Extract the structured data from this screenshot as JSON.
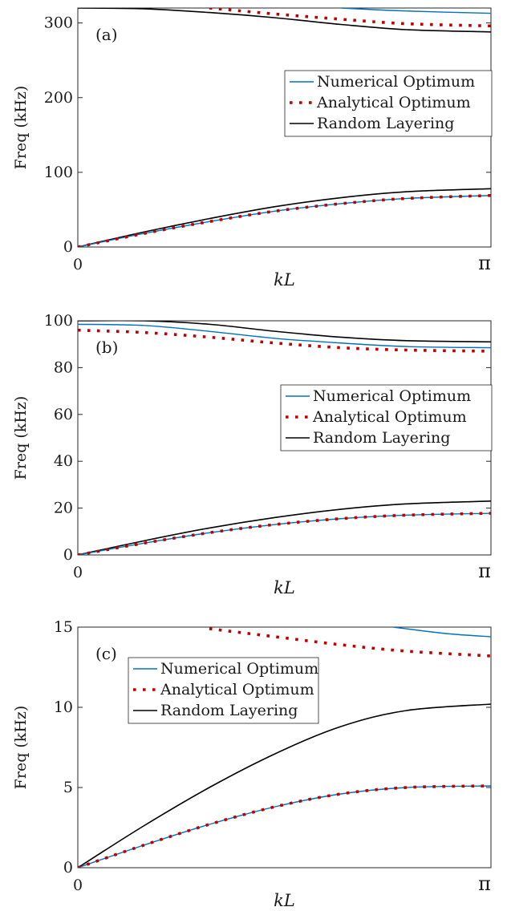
{
  "colors": {
    "numerical": "#0072bd",
    "analytical": "#c00000",
    "random": "#000000"
  },
  "x_ticks": [
    "0",
    "π"
  ],
  "x_label": "kL",
  "chart_data": [
    {
      "type": "line",
      "panel_label": "(a)",
      "ylabel": "Freq (kHz)",
      "xlabel": "kL",
      "xlim": [
        0,
        3.1416
      ],
      "ylim": [
        0,
        320
      ],
      "yticks": [
        0,
        100,
        200,
        300
      ],
      "ytick_labels": [
        "0",
        "100",
        "200",
        "300"
      ],
      "legend_position": "center-right",
      "series": [
        {
          "name": "Numerical Optimum",
          "style": "solid",
          "color": "numerical",
          "branches": [
            {
              "x": [
                0,
                0.5,
                1.0,
                1.5,
                2.0,
                2.5,
                3.1416
              ],
              "y": [
                0,
                18,
                34,
                48,
                58,
                65,
                69
              ]
            },
            {
              "x": [
                2.0,
                2.5,
                3.1416
              ],
              "y": [
                320,
                316,
                313
              ]
            }
          ]
        },
        {
          "name": "Analytical Optimum",
          "style": "dotted",
          "color": "analytical",
          "branches": [
            {
              "x": [
                0,
                0.5,
                1.0,
                1.5,
                2.0,
                2.5,
                3.1416
              ],
              "y": [
                0,
                18,
                34,
                48,
                58,
                65,
                69
              ]
            },
            {
              "x": [
                1.0,
                1.5,
                2.0,
                2.5,
                3.1416
              ],
              "y": [
                320,
                312,
                305,
                299,
                296
              ]
            }
          ]
        },
        {
          "name": "Random Layering",
          "style": "solid",
          "color": "random",
          "branches": [
            {
              "x": [
                0,
                0.5,
                1.0,
                1.5,
                2.0,
                2.5,
                3.1416
              ],
              "y": [
                0,
                20,
                38,
                54,
                66,
                74,
                78
              ]
            },
            {
              "x": [
                0,
                0.5,
                1.0,
                1.5,
                2.0,
                2.5,
                3.1416
              ],
              "y": [
                320,
                319,
                314,
                307,
                298,
                291,
                288
              ]
            }
          ]
        }
      ]
    },
    {
      "type": "line",
      "panel_label": "(b)",
      "ylabel": "Freq (kHz)",
      "xlabel": "kL",
      "xlim": [
        0,
        3.1416
      ],
      "ylim": [
        0,
        100
      ],
      "yticks": [
        0,
        20,
        40,
        60,
        80,
        100
      ],
      "ytick_labels": [
        "0",
        "20",
        "40",
        "60",
        "80",
        "100"
      ],
      "legend_position": "center-right",
      "series": [
        {
          "name": "Numerical Optimum",
          "style": "solid",
          "color": "numerical",
          "branches": [
            {
              "x": [
                0,
                0.5,
                1.0,
                1.5,
                2.0,
                2.5,
                3.1416
              ],
              "y": [
                0,
                5,
                9.5,
                13,
                15.5,
                17,
                17.8
              ]
            },
            {
              "x": [
                0,
                0.5,
                1.0,
                1.5,
                2.0,
                2.5,
                3.1416
              ],
              "y": [
                98.5,
                98,
                95.5,
                92.5,
                90.5,
                89,
                88.5
              ]
            }
          ]
        },
        {
          "name": "Analytical Optimum",
          "style": "dotted",
          "color": "analytical",
          "branches": [
            {
              "x": [
                0,
                0.5,
                1.0,
                1.5,
                2.0,
                2.5,
                3.1416
              ],
              "y": [
                0,
                5,
                9.5,
                13,
                15.5,
                17,
                17.8
              ]
            },
            {
              "x": [
                0,
                0.5,
                1.0,
                1.5,
                2.0,
                2.5,
                3.1416
              ],
              "y": [
                96,
                95,
                93,
                90.5,
                88.5,
                87.5,
                87
              ]
            }
          ]
        },
        {
          "name": "Random Layering",
          "style": "solid",
          "color": "random",
          "branches": [
            {
              "x": [
                0,
                0.5,
                1.0,
                1.5,
                2.0,
                2.5,
                3.1416
              ],
              "y": [
                0,
                6,
                11.5,
                16,
                19.5,
                21.8,
                23
              ]
            },
            {
              "x": [
                0,
                0.5,
                1.0,
                1.5,
                2.0,
                2.5,
                3.1416
              ],
              "y": [
                100,
                100,
                98.5,
                95.5,
                93,
                91.5,
                91
              ]
            }
          ]
        }
      ]
    },
    {
      "type": "line",
      "panel_label": "(c)",
      "ylabel": "Freq (kHz)",
      "xlabel": "kL",
      "xlim": [
        0,
        3.1416
      ],
      "ylim": [
        0,
        15
      ],
      "yticks": [
        0,
        5,
        10,
        15
      ],
      "ytick_labels": [
        "0",
        "5",
        "10",
        "15"
      ],
      "legend_position": "top-left",
      "series": [
        {
          "name": "Numerical Optimum",
          "style": "solid",
          "color": "numerical",
          "branches": [
            {
              "x": [
                0,
                0.5,
                1.0,
                1.5,
                2.0,
                2.5,
                3.1416
              ],
              "y": [
                0,
                1.4,
                2.7,
                3.8,
                4.6,
                5.0,
                5.1
              ]
            },
            {
              "x": [
                2.4,
                2.8,
                3.1416
              ],
              "y": [
                15,
                14.6,
                14.4
              ]
            }
          ]
        },
        {
          "name": "Analytical Optimum",
          "style": "dotted",
          "color": "analytical",
          "branches": [
            {
              "x": [
                0,
                0.5,
                1.0,
                1.5,
                2.0,
                2.5,
                3.1416
              ],
              "y": [
                0,
                1.4,
                2.7,
                3.8,
                4.6,
                5.0,
                5.1
              ]
            },
            {
              "x": [
                1.0,
                1.5,
                2.0,
                2.5,
                3.1416
              ],
              "y": [
                14.9,
                14.4,
                13.9,
                13.5,
                13.2
              ]
            }
          ]
        },
        {
          "name": "Random Layering",
          "style": "solid",
          "color": "random",
          "branches": [
            {
              "x": [
                0,
                0.5,
                1.0,
                1.5,
                2.0,
                2.5,
                3.1416
              ],
              "y": [
                0,
                2.6,
                5.0,
                7.1,
                8.8,
                9.8,
                10.2
              ]
            }
          ]
        }
      ]
    }
  ]
}
